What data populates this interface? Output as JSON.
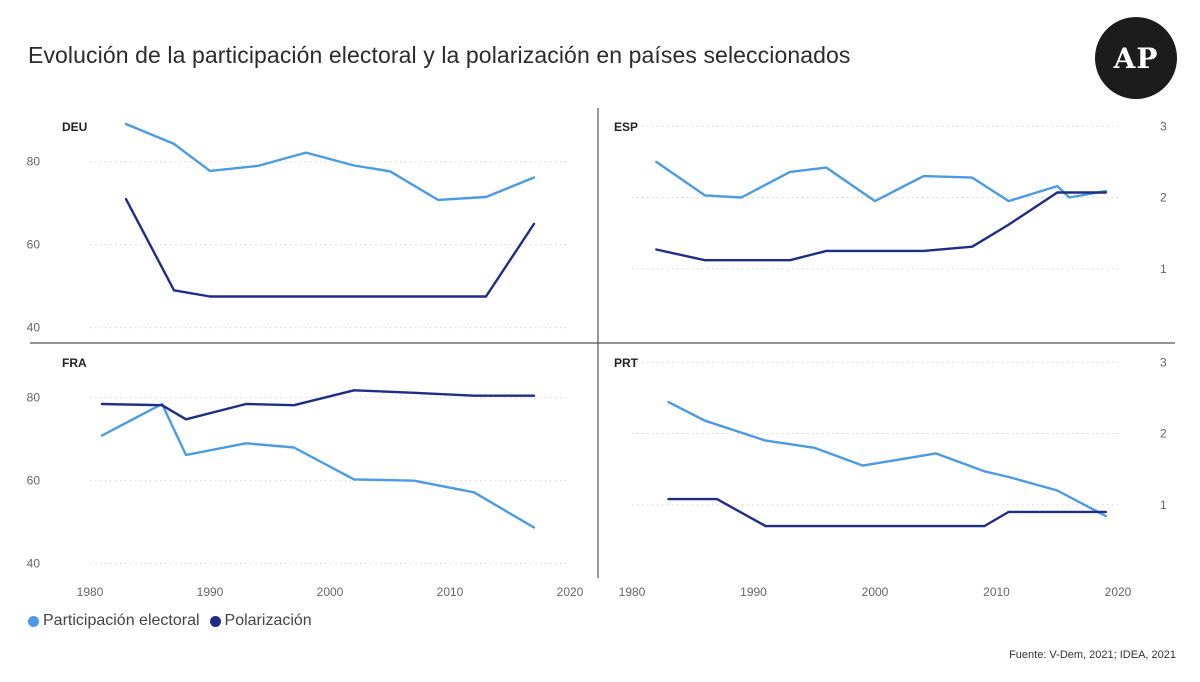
{
  "title": "Evolución de la participación electoral y la polarización en países seleccionados",
  "logo_text": "AP",
  "source": "Fuente: V-Dem, 2021; IDEA, 2021",
  "legend": [
    {
      "label": "Participación electoral",
      "color": "#4a9be3"
    },
    {
      "label": "Polarización",
      "color": "#1f2d86"
    }
  ],
  "chart_data": [
    {
      "type": "line",
      "panel": "DEU",
      "xlim": [
        1980,
        2020
      ],
      "ylim": [
        37,
        92
      ],
      "y_ticks": [
        "40",
        "60",
        "80"
      ],
      "y2_ticks": [],
      "x_ticks": [],
      "series": [
        {
          "name": "Participación electoral",
          "color": "#4a9be3",
          "x": [
            1983,
            1987,
            1990,
            1994,
            1998,
            2002,
            2005,
            2009,
            2013,
            2017
          ],
          "y": [
            89.1,
            84.3,
            77.8,
            79.0,
            82.2,
            79.1,
            77.7,
            70.8,
            71.5,
            76.2
          ]
        },
        {
          "name": "Polarización",
          "color": "#1f2d86",
          "x": [
            1983,
            1987,
            1990,
            1994,
            1998,
            2002,
            2005,
            2009,
            2013,
            2017
          ],
          "y": [
            71.0,
            49.0,
            47.5,
            47.5,
            47.5,
            47.5,
            47.5,
            47.5,
            47.5,
            65.0
          ]
        }
      ]
    },
    {
      "type": "line",
      "panel": "ESP",
      "xlim": [
        1980,
        2020
      ],
      "ylim": [
        0.0,
        3.2
      ],
      "y_ticks": [],
      "y2_ticks": [
        "1",
        "2",
        "3"
      ],
      "x_ticks": [],
      "series": [
        {
          "name": "Participación electoral",
          "color": "#4a9be3",
          "x": [
            1982,
            1986,
            1989,
            1993,
            1996,
            2000,
            2004,
            2008,
            2011,
            2015,
            2016,
            2019
          ],
          "y": [
            2.5,
            2.03,
            2.0,
            2.36,
            2.42,
            1.95,
            2.3,
            2.28,
            1.95,
            2.16,
            2.0,
            2.09
          ]
        },
        {
          "name": "Polarización",
          "color": "#1f2d86",
          "x": [
            1982,
            1986,
            1989,
            1993,
            1996,
            2000,
            2004,
            2008,
            2011,
            2015,
            2019
          ],
          "y": [
            1.27,
            1.12,
            1.12,
            1.12,
            1.25,
            1.25,
            1.25,
            1.31,
            1.62,
            2.07,
            2.07
          ]
        }
      ]
    },
    {
      "type": "line",
      "panel": "FRA",
      "xlim": [
        1980,
        2020
      ],
      "ylim": [
        37,
        92
      ],
      "y_ticks": [
        "40",
        "60",
        "80"
      ],
      "y2_ticks": [],
      "x_ticks": [
        "1980",
        "1990",
        "2000",
        "2010",
        "2020"
      ],
      "series": [
        {
          "name": "Participación electoral",
          "color": "#4a9be3",
          "x": [
            1981,
            1986,
            1988,
            1993,
            1997,
            2002,
            2007,
            2012,
            2017
          ],
          "y": [
            70.9,
            78.5,
            66.2,
            69.0,
            68.0,
            60.3,
            60.0,
            57.2,
            48.7
          ]
        },
        {
          "name": "Polarización",
          "color": "#1f2d86",
          "x": [
            1981,
            1986,
            1988,
            1993,
            1997,
            2002,
            2007,
            2012,
            2017
          ],
          "y": [
            78.5,
            78.2,
            74.8,
            78.5,
            78.2,
            81.8,
            81.2,
            80.5,
            80.5
          ]
        }
      ]
    },
    {
      "type": "line",
      "panel": "PRT",
      "xlim": [
        1980,
        2020
      ],
      "ylim": [
        0.0,
        3.2
      ],
      "y_ticks": [],
      "y2_ticks": [
        "1",
        "2",
        "3"
      ],
      "x_ticks": [
        "1980",
        "1990",
        "2000",
        "2010",
        "2020"
      ],
      "series": [
        {
          "name": "Participación electoral",
          "color": "#4a9be3",
          "x": [
            1983,
            1986,
            1991,
            1995,
            1999,
            2005,
            2009,
            2011,
            2015,
            2019
          ],
          "y": [
            2.44,
            2.18,
            1.9,
            1.8,
            1.55,
            1.72,
            1.47,
            1.39,
            1.2,
            0.84
          ]
        },
        {
          "name": "Polarización",
          "color": "#1f2d86",
          "x": [
            1983,
            1987,
            1991,
            1995,
            1999,
            2005,
            2009,
            2011,
            2015,
            2019
          ],
          "y": [
            1.08,
            1.08,
            0.7,
            0.7,
            0.7,
            0.7,
            0.7,
            0.9,
            0.9,
            0.9
          ]
        }
      ]
    }
  ]
}
